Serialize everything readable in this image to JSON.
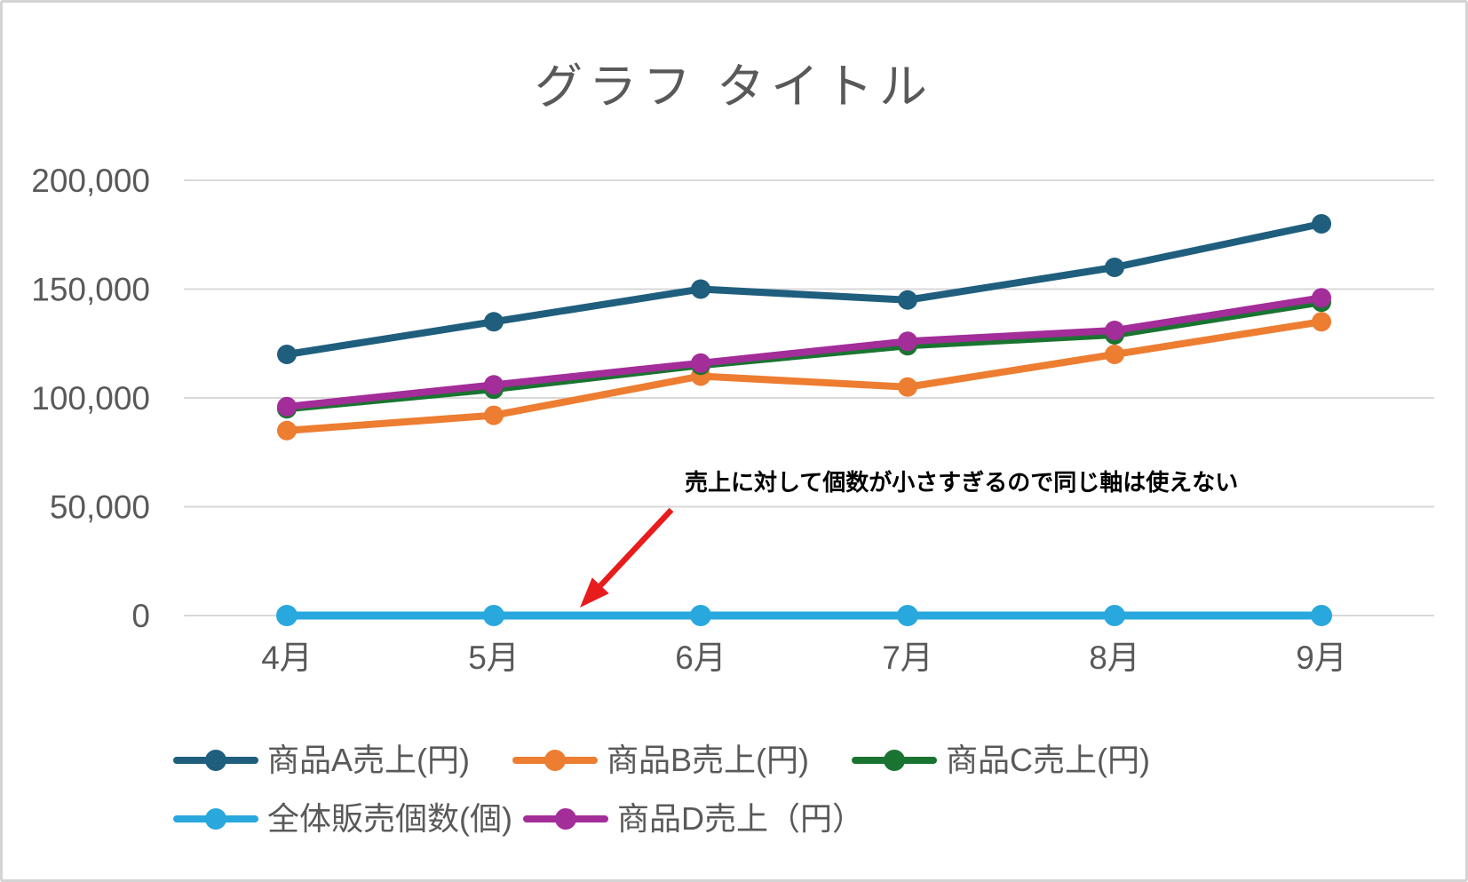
{
  "frame": {
    "background": "#ffffff",
    "border_color": "#d4d4d4"
  },
  "chart_data": {
    "type": "line",
    "title": "グラフ タイトル",
    "title_color": "#595959",
    "categories": [
      "4月",
      "5月",
      "6月",
      "7月",
      "8月",
      "9月"
    ],
    "series": [
      {
        "name": "商品A売上(円)",
        "color": "#1f5e7d",
        "values": [
          120000,
          135000,
          150000,
          145000,
          160000,
          180000
        ]
      },
      {
        "name": "商品B売上(円)",
        "color": "#ed7d31",
        "values": [
          85000,
          92000,
          110000,
          105000,
          120000,
          135000
        ]
      },
      {
        "name": "商品C売上(円)",
        "color": "#1a7431",
        "values": [
          95000,
          104000,
          115000,
          124000,
          129000,
          144000
        ]
      },
      {
        "name": "全体販売個数(個)",
        "color": "#29a8dd",
        "values": [
          0,
          0,
          0,
          0,
          0,
          0
        ]
      },
      {
        "name": "商品D売上（円）",
        "color": "#a32d99",
        "values": [
          96000,
          106000,
          116000,
          126000,
          131000,
          146000
        ]
      }
    ],
    "ylim": [
      0,
      200000
    ],
    "y_tick_step": 50000,
    "y_tick_labels": [
      "0",
      "50,000",
      "100,000",
      "150,000",
      "200,000"
    ],
    "x_tick_labels": [
      "4月",
      "5月",
      "6月",
      "7月",
      "8月",
      "9月"
    ],
    "grid": "horizontal",
    "gridline_color": "#d9d9d9",
    "axis_text_color": "#595959",
    "legend_position": "bottom-left",
    "legend_rows": [
      [
        0,
        1,
        2
      ],
      [
        3,
        4
      ]
    ],
    "annotation": {
      "text": "売上に対して個数が小さすぎるので同じ軸は使えない",
      "text_color": "#000000",
      "arrow_color": "#e81c1c"
    }
  }
}
